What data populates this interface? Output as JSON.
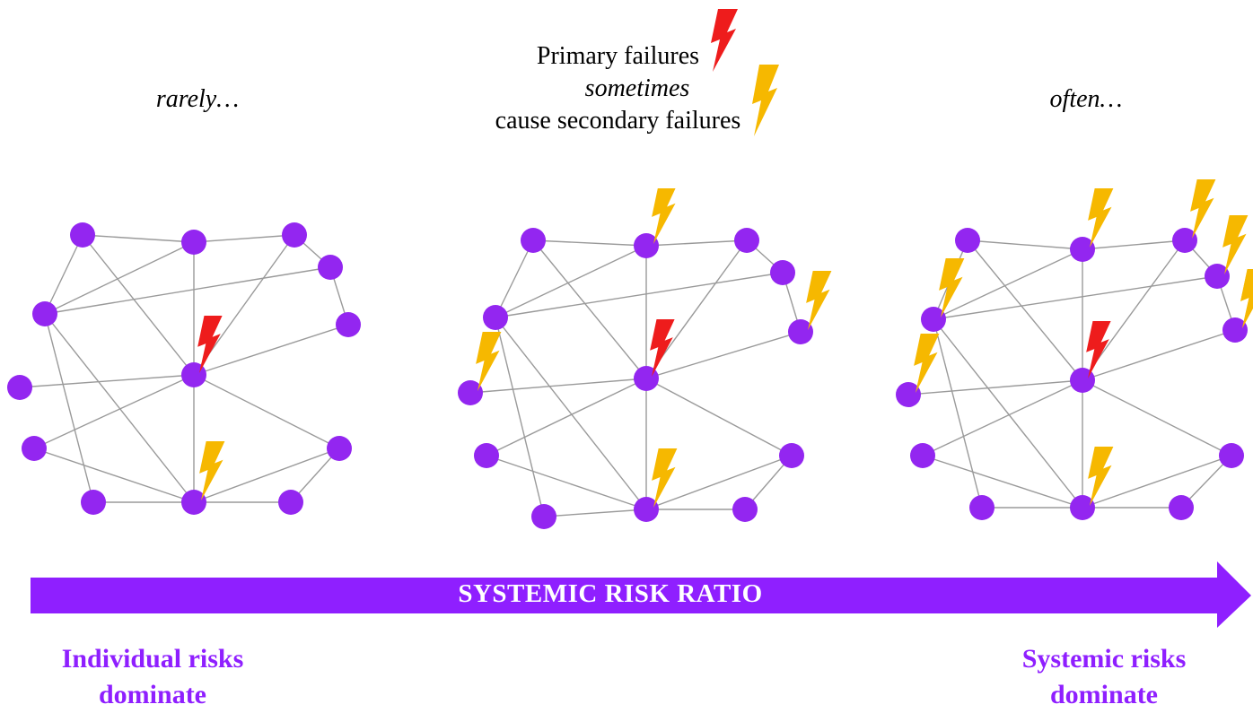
{
  "captions": {
    "left": "rarely…",
    "center_line1": "Primary failures",
    "center_line2": "sometimes",
    "center_line3": "cause secondary failures",
    "right": "often…"
  },
  "arrow": {
    "label": "SYSTEMIC RISK RATIO"
  },
  "bottom": {
    "left_line1": "Individual risks",
    "left_line2": "dominate",
    "right_line1": "Systemic risks",
    "right_line2": "dominate"
  },
  "colors": {
    "node": "#9326f0",
    "edge": "#9a9a9a",
    "primary_bolt": "#ee1c1c",
    "secondary_bolt": "#f6b800",
    "arrow": "#8f1fff"
  },
  "icons": {
    "primary": "red-lightning-bolt",
    "secondary": "yellow-lightning-bolt"
  },
  "networks": [
    {
      "name": "rarely",
      "secondary_failure_nodes": [
        15
      ]
    },
    {
      "name": "sometimes",
      "secondary_failure_nodes": [
        1,
        5,
        8,
        15
      ]
    },
    {
      "name": "often",
      "secondary_failure_nodes": [
        1,
        2,
        3,
        4,
        5,
        6,
        8,
        15
      ]
    }
  ]
}
